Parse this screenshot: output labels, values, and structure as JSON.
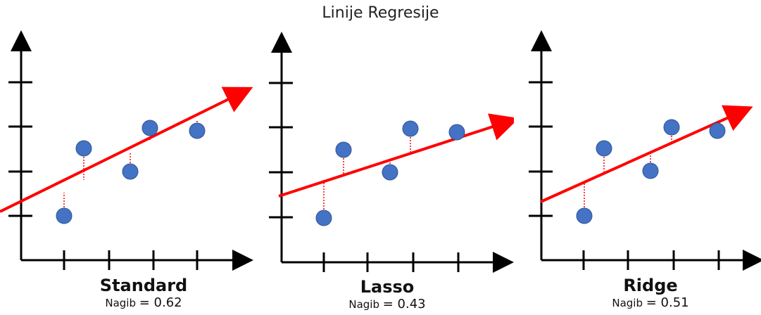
{
  "title": "Linije Regresije",
  "colors": {
    "points": "#4472C4",
    "line": "#FF0000",
    "residual": "#FF0000",
    "axis": "#000000"
  },
  "panels": [
    {
      "name": "Standard",
      "slope_label": "Nagib",
      "slope_value": "= 0.62"
    },
    {
      "name": "Lasso",
      "slope_label": "Nagib",
      "slope_value": "= 0.43"
    },
    {
      "name": "Ridge",
      "slope_label": "Nagib",
      "slope_value": "= 0.51"
    }
  ]
}
